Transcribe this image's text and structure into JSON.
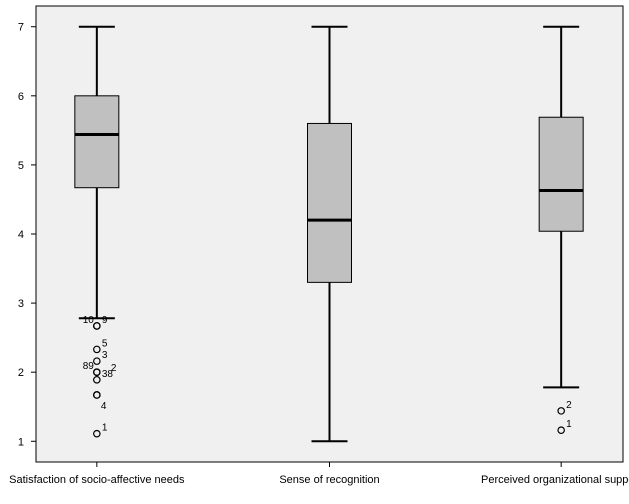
{
  "chart_data": {
    "type": "boxplot",
    "ylim": [
      0.7,
      7.3
    ],
    "yticks": [
      "1",
      "2",
      "3",
      "4",
      "5",
      "6",
      "7"
    ],
    "grid": false,
    "colors": {
      "plot_background": "#f0f0f0",
      "box_fill": "#c0c0c0",
      "stroke": "#000000"
    },
    "categories": [
      "Satisfaction of socio-affective needs",
      "Sense of recognition",
      "Perceived organizational support"
    ],
    "boxes": [
      {
        "category": "Satisfaction of socio-affective needs",
        "min": 2.78,
        "q1": 4.67,
        "median": 5.44,
        "q3": 6.0,
        "max": 7.0,
        "outliers": [
          {
            "value": 2.67,
            "label": "10",
            "label_side": "left"
          },
          {
            "value": 2.67,
            "label": "9",
            "label_side": "right"
          },
          {
            "value": 2.33,
            "label": "5",
            "label_side": "right"
          },
          {
            "value": 2.16,
            "label": "3",
            "label_side": "right"
          },
          {
            "value": 2.0,
            "label": "89",
            "label_side": "left"
          },
          {
            "value": 2.0,
            "label": "2",
            "label_side": "far-right"
          },
          {
            "value": 1.89,
            "label": "38",
            "label_side": "right"
          },
          {
            "value": 1.67,
            "label": "",
            "label_side": "right"
          },
          {
            "value": 1.67,
            "label": "4",
            "label_side": "right-below"
          },
          {
            "value": 1.11,
            "label": "1",
            "label_side": "right"
          }
        ]
      },
      {
        "category": "Sense of recognition",
        "min": 1.0,
        "q1": 3.3,
        "median": 4.2,
        "q3": 5.6,
        "max": 7.0,
        "outliers": []
      },
      {
        "category": "Perceived organizational support",
        "min": 1.78,
        "q1": 4.04,
        "median": 4.63,
        "q3": 5.69,
        "max": 7.0,
        "outliers": [
          {
            "value": 1.44,
            "label": "2",
            "label_side": "right"
          },
          {
            "value": 1.16,
            "label": "1",
            "label_side": "right"
          }
        ]
      }
    ]
  }
}
